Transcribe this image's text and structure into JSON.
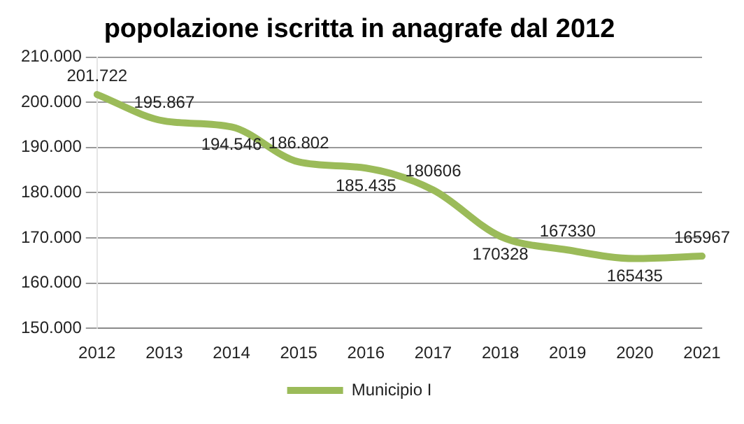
{
  "chart_data": {
    "type": "line",
    "title": "popolazione iscritta in anagrafe dal 2012",
    "categories": [
      "2012",
      "2013",
      "2014",
      "2015",
      "2016",
      "2017",
      "2018",
      "2019",
      "2020",
      "2021"
    ],
    "series": [
      {
        "name": "Municipio I",
        "color": "#9bbb59",
        "values": [
          201722,
          195867,
          194546,
          186802,
          185435,
          180606,
          170328,
          167330,
          165435,
          165967
        ],
        "value_labels": [
          "201.722",
          "195.867",
          "194.546",
          "186.802",
          "185.435",
          "180606",
          "170328",
          "167330",
          "165435",
          "165967"
        ]
      }
    ],
    "ylim": [
      150000,
      210000
    ],
    "yticks": [
      {
        "value": 150000,
        "label": "150.000"
      },
      {
        "value": 160000,
        "label": "160.000"
      },
      {
        "value": 170000,
        "label": "170.000"
      },
      {
        "value": 180000,
        "label": "180.000"
      },
      {
        "value": 190000,
        "label": "190.000"
      },
      {
        "value": 200000,
        "label": "200.000"
      },
      {
        "value": 210000,
        "label": "210.000"
      }
    ],
    "grid": "y",
    "legend": "bottom",
    "marker": "none",
    "line_style": "solid"
  }
}
